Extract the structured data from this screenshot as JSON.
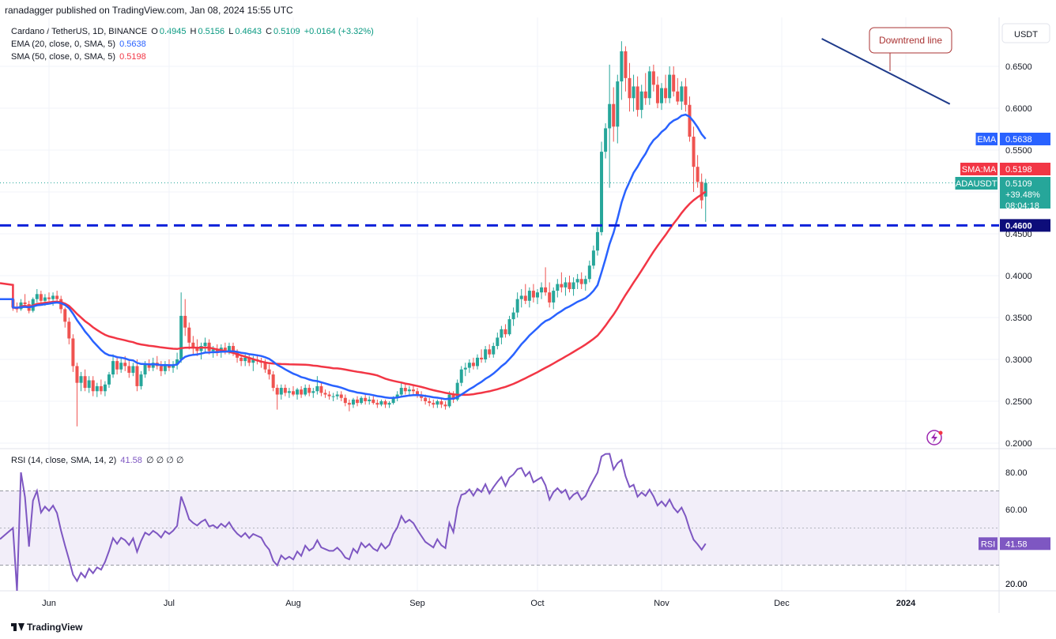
{
  "header": {
    "publisher": "ranadagger published on TradingView.com, Jan 08, 2024 15:55 UTC"
  },
  "legend": {
    "title": "Cardano / TetherUS, 1D, BINANCE",
    "o_label": "O",
    "o_value": "0.4945",
    "h_label": "H",
    "h_value": "0.5156",
    "l_label": "L",
    "l_value": "0.4643",
    "c_label": "C",
    "c_value": "0.5109",
    "change": "+0.0164 (+3.32%)",
    "ema_label": "EMA (20, close, 0, SMA, 5)",
    "ema_value": "0.5638",
    "sma_label": "SMA (50, close, 0, SMA, 5)",
    "sma_value": "0.5198",
    "rsi_label": "RSI (14, close, SMA, 14, 2)",
    "rsi_value": "41.58",
    "rsi_extra": "∅ ∅ ∅ ∅"
  },
  "colors": {
    "up": "#26a69a",
    "down": "#ef5350",
    "ema": "#2962ff",
    "sma": "#f23645",
    "rsi": "#7e57c2",
    "support": "#0d21d9",
    "trend": "#1e3a8a"
  },
  "currency_button": "USDT",
  "annotation": "Downtrend line",
  "price_tags": {
    "ema_label": "EMA",
    "ema_value": "0.5638",
    "sma_label": "SMA:MA",
    "sma_value": "0.5198",
    "pair_label": "ADAUSDT",
    "pair_value": "0.5109",
    "pair_change": "+39.48%",
    "pair_countdown": "08:04:18",
    "support_value": "0.4600",
    "rsi_label": "RSI",
    "rsi_value": "41.58"
  },
  "footer": {
    "brand": "TradingView"
  },
  "chart_data": {
    "type": "candlestick",
    "title": "Cardano / TetherUS, 1D, BINANCE",
    "price_axis": {
      "ticks": [
        "0.6500",
        "0.6000",
        "0.5500",
        "0.5000",
        "0.4500",
        "0.4000",
        "0.3500",
        "0.3000",
        "0.2500",
        "0.2000"
      ],
      "range": [
        0.2,
        0.68
      ]
    },
    "rsi_axis": {
      "ticks": [
        "80.00",
        "60.00",
        "20.00"
      ],
      "range": [
        16,
        90
      ],
      "bands": [
        30,
        70
      ]
    },
    "time_axis": [
      "Jun",
      "Jul",
      "Aug",
      "Sep",
      "Oct",
      "Nov",
      "Dec",
      "2024"
    ],
    "support_level": 0.46,
    "trendline": {
      "from": [
        "2023-12-11",
        0.683
      ],
      "to": [
        "2024-01-12",
        0.605
      ]
    },
    "dates_start": "2023-05-23",
    "candles": [
      [
        0.372,
        0.378,
        0.358,
        0.362
      ],
      [
        0.362,
        0.368,
        0.356,
        0.36
      ],
      [
        0.36,
        0.372,
        0.358,
        0.368
      ],
      [
        0.368,
        0.378,
        0.362,
        0.366
      ],
      [
        0.366,
        0.37,
        0.355,
        0.358
      ],
      [
        0.358,
        0.374,
        0.356,
        0.372
      ],
      [
        0.372,
        0.384,
        0.368,
        0.378
      ],
      [
        0.378,
        0.382,
        0.366,
        0.37
      ],
      [
        0.37,
        0.378,
        0.364,
        0.374
      ],
      [
        0.374,
        0.38,
        0.368,
        0.372
      ],
      [
        0.372,
        0.38,
        0.364,
        0.376
      ],
      [
        0.376,
        0.382,
        0.368,
        0.372
      ],
      [
        0.372,
        0.376,
        0.355,
        0.36
      ],
      [
        0.36,
        0.362,
        0.338,
        0.345
      ],
      [
        0.345,
        0.35,
        0.318,
        0.325
      ],
      [
        0.325,
        0.33,
        0.285,
        0.292
      ],
      [
        0.292,
        0.296,
        0.22,
        0.272
      ],
      [
        0.272,
        0.285,
        0.262,
        0.28
      ],
      [
        0.28,
        0.288,
        0.262,
        0.266
      ],
      [
        0.266,
        0.28,
        0.26,
        0.275
      ],
      [
        0.275,
        0.28,
        0.256,
        0.262
      ],
      [
        0.262,
        0.272,
        0.255,
        0.268
      ],
      [
        0.268,
        0.276,
        0.258,
        0.262
      ],
      [
        0.262,
        0.274,
        0.256,
        0.27
      ],
      [
        0.27,
        0.285,
        0.266,
        0.282
      ],
      [
        0.282,
        0.306,
        0.278,
        0.298
      ],
      [
        0.298,
        0.304,
        0.282,
        0.288
      ],
      [
        0.288,
        0.302,
        0.284,
        0.296
      ],
      [
        0.296,
        0.304,
        0.286,
        0.292
      ],
      [
        0.292,
        0.298,
        0.278,
        0.284
      ],
      [
        0.284,
        0.296,
        0.28,
        0.292
      ],
      [
        0.292,
        0.3,
        0.262,
        0.268
      ],
      [
        0.268,
        0.286,
        0.264,
        0.282
      ],
      [
        0.282,
        0.298,
        0.278,
        0.294
      ],
      [
        0.294,
        0.3,
        0.286,
        0.29
      ],
      [
        0.29,
        0.302,
        0.286,
        0.296
      ],
      [
        0.296,
        0.304,
        0.288,
        0.292
      ],
      [
        0.292,
        0.298,
        0.28,
        0.286
      ],
      [
        0.286,
        0.298,
        0.282,
        0.294
      ],
      [
        0.294,
        0.3,
        0.286,
        0.29
      ],
      [
        0.29,
        0.298,
        0.284,
        0.294
      ],
      [
        0.294,
        0.308,
        0.288,
        0.3
      ],
      [
        0.3,
        0.38,
        0.296,
        0.352
      ],
      [
        0.352,
        0.372,
        0.328,
        0.338
      ],
      [
        0.338,
        0.344,
        0.312,
        0.32
      ],
      [
        0.32,
        0.328,
        0.306,
        0.314
      ],
      [
        0.314,
        0.324,
        0.304,
        0.31
      ],
      [
        0.31,
        0.32,
        0.3,
        0.316
      ],
      [
        0.316,
        0.326,
        0.308,
        0.32
      ],
      [
        0.32,
        0.324,
        0.306,
        0.31
      ],
      [
        0.31,
        0.316,
        0.302,
        0.312
      ],
      [
        0.312,
        0.318,
        0.304,
        0.308
      ],
      [
        0.308,
        0.318,
        0.302,
        0.314
      ],
      [
        0.314,
        0.32,
        0.306,
        0.31
      ],
      [
        0.31,
        0.32,
        0.306,
        0.316
      ],
      [
        0.316,
        0.32,
        0.304,
        0.308
      ],
      [
        0.308,
        0.312,
        0.296,
        0.302
      ],
      [
        0.302,
        0.306,
        0.292,
        0.298
      ],
      [
        0.298,
        0.306,
        0.292,
        0.302
      ],
      [
        0.302,
        0.306,
        0.292,
        0.296
      ],
      [
        0.296,
        0.304,
        0.286,
        0.3
      ],
      [
        0.3,
        0.306,
        0.294,
        0.298
      ],
      [
        0.298,
        0.302,
        0.29,
        0.296
      ],
      [
        0.296,
        0.3,
        0.284,
        0.288
      ],
      [
        0.288,
        0.294,
        0.276,
        0.282
      ],
      [
        0.282,
        0.286,
        0.262,
        0.266
      ],
      [
        0.266,
        0.27,
        0.24,
        0.258
      ],
      [
        0.258,
        0.27,
        0.252,
        0.266
      ],
      [
        0.266,
        0.27,
        0.256,
        0.26
      ],
      [
        0.26,
        0.266,
        0.254,
        0.262
      ],
      [
        0.262,
        0.268,
        0.256,
        0.258
      ],
      [
        0.258,
        0.266,
        0.252,
        0.264
      ],
      [
        0.264,
        0.268,
        0.254,
        0.258
      ],
      [
        0.258,
        0.27,
        0.256,
        0.266
      ],
      [
        0.266,
        0.27,
        0.256,
        0.26
      ],
      [
        0.26,
        0.266,
        0.254,
        0.262
      ],
      [
        0.262,
        0.28,
        0.258,
        0.268
      ],
      [
        0.268,
        0.272,
        0.256,
        0.26
      ],
      [
        0.26,
        0.264,
        0.254,
        0.258
      ],
      [
        0.258,
        0.262,
        0.252,
        0.256
      ],
      [
        0.256,
        0.26,
        0.25,
        0.256
      ],
      [
        0.256,
        0.262,
        0.252,
        0.258
      ],
      [
        0.258,
        0.262,
        0.25,
        0.254
      ],
      [
        0.254,
        0.258,
        0.244,
        0.248
      ],
      [
        0.248,
        0.252,
        0.238,
        0.246
      ],
      [
        0.246,
        0.254,
        0.242,
        0.252
      ],
      [
        0.252,
        0.256,
        0.244,
        0.248
      ],
      [
        0.248,
        0.256,
        0.246,
        0.254
      ],
      [
        0.254,
        0.258,
        0.246,
        0.25
      ],
      [
        0.25,
        0.256,
        0.246,
        0.252
      ],
      [
        0.252,
        0.256,
        0.246,
        0.248
      ],
      [
        0.248,
        0.252,
        0.242,
        0.246
      ],
      [
        0.246,
        0.252,
        0.244,
        0.25
      ],
      [
        0.25,
        0.252,
        0.242,
        0.246
      ],
      [
        0.246,
        0.25,
        0.242,
        0.248
      ],
      [
        0.248,
        0.256,
        0.246,
        0.254
      ],
      [
        0.254,
        0.262,
        0.25,
        0.258
      ],
      [
        0.258,
        0.272,
        0.256,
        0.266
      ],
      [
        0.266,
        0.27,
        0.258,
        0.262
      ],
      [
        0.262,
        0.268,
        0.256,
        0.264
      ],
      [
        0.264,
        0.27,
        0.258,
        0.262
      ],
      [
        0.262,
        0.266,
        0.254,
        0.258
      ],
      [
        0.258,
        0.262,
        0.25,
        0.254
      ],
      [
        0.254,
        0.258,
        0.246,
        0.25
      ],
      [
        0.25,
        0.254,
        0.244,
        0.248
      ],
      [
        0.248,
        0.252,
        0.242,
        0.246
      ],
      [
        0.246,
        0.252,
        0.242,
        0.25
      ],
      [
        0.25,
        0.254,
        0.242,
        0.246
      ],
      [
        0.246,
        0.25,
        0.24,
        0.244
      ],
      [
        0.244,
        0.262,
        0.242,
        0.258
      ],
      [
        0.258,
        0.262,
        0.248,
        0.252
      ],
      [
        0.252,
        0.276,
        0.25,
        0.272
      ],
      [
        0.272,
        0.292,
        0.268,
        0.288
      ],
      [
        0.288,
        0.296,
        0.28,
        0.29
      ],
      [
        0.29,
        0.3,
        0.284,
        0.296
      ],
      [
        0.296,
        0.302,
        0.288,
        0.292
      ],
      [
        0.292,
        0.306,
        0.288,
        0.302
      ],
      [
        0.302,
        0.312,
        0.296,
        0.3
      ],
      [
        0.3,
        0.316,
        0.296,
        0.312
      ],
      [
        0.312,
        0.318,
        0.302,
        0.306
      ],
      [
        0.306,
        0.32,
        0.302,
        0.316
      ],
      [
        0.316,
        0.332,
        0.312,
        0.326
      ],
      [
        0.326,
        0.34,
        0.318,
        0.336
      ],
      [
        0.336,
        0.342,
        0.326,
        0.33
      ],
      [
        0.33,
        0.352,
        0.328,
        0.348
      ],
      [
        0.348,
        0.362,
        0.34,
        0.356
      ],
      [
        0.356,
        0.38,
        0.35,
        0.372
      ],
      [
        0.372,
        0.384,
        0.362,
        0.376
      ],
      [
        0.376,
        0.39,
        0.366,
        0.37
      ],
      [
        0.37,
        0.386,
        0.362,
        0.382
      ],
      [
        0.382,
        0.39,
        0.368,
        0.374
      ],
      [
        0.374,
        0.384,
        0.366,
        0.38
      ],
      [
        0.38,
        0.392,
        0.372,
        0.386
      ],
      [
        0.386,
        0.41,
        0.376,
        0.38
      ],
      [
        0.38,
        0.392,
        0.362,
        0.368
      ],
      [
        0.368,
        0.386,
        0.36,
        0.382
      ],
      [
        0.382,
        0.396,
        0.374,
        0.39
      ],
      [
        0.39,
        0.404,
        0.38,
        0.386
      ],
      [
        0.386,
        0.398,
        0.376,
        0.392
      ],
      [
        0.392,
        0.4,
        0.38,
        0.384
      ],
      [
        0.384,
        0.398,
        0.376,
        0.392
      ],
      [
        0.392,
        0.402,
        0.384,
        0.396
      ],
      [
        0.396,
        0.404,
        0.384,
        0.39
      ],
      [
        0.39,
        0.4,
        0.382,
        0.396
      ],
      [
        0.396,
        0.418,
        0.392,
        0.412
      ],
      [
        0.412,
        0.436,
        0.408,
        0.43
      ],
      [
        0.43,
        0.458,
        0.424,
        0.452
      ],
      [
        0.452,
        0.56,
        0.448,
        0.548
      ],
      [
        0.548,
        0.582,
        0.54,
        0.576
      ],
      [
        0.576,
        0.652,
        0.505,
        0.605
      ],
      [
        0.605,
        0.625,
        0.56,
        0.578
      ],
      [
        0.578,
        0.64,
        0.558,
        0.632
      ],
      [
        0.632,
        0.68,
        0.61,
        0.668
      ],
      [
        0.668,
        0.674,
        0.62,
        0.636
      ],
      [
        0.636,
        0.654,
        0.596,
        0.612
      ],
      [
        0.612,
        0.64,
        0.596,
        0.626
      ],
      [
        0.626,
        0.638,
        0.59,
        0.598
      ],
      [
        0.598,
        0.628,
        0.588,
        0.62
      ],
      [
        0.62,
        0.642,
        0.604,
        0.612
      ],
      [
        0.612,
        0.65,
        0.604,
        0.644
      ],
      [
        0.644,
        0.652,
        0.62,
        0.628
      ],
      [
        0.628,
        0.638,
        0.6,
        0.606
      ],
      [
        0.606,
        0.63,
        0.598,
        0.624
      ],
      [
        0.624,
        0.64,
        0.606,
        0.612
      ],
      [
        0.612,
        0.65,
        0.606,
        0.64
      ],
      [
        0.64,
        0.65,
        0.614,
        0.62
      ],
      [
        0.62,
        0.636,
        0.604,
        0.608
      ],
      [
        0.608,
        0.632,
        0.598,
        0.626
      ],
      [
        0.626,
        0.636,
        0.596,
        0.604
      ],
      [
        0.604,
        0.614,
        0.56,
        0.566
      ],
      [
        0.566,
        0.578,
        0.5,
        0.53
      ],
      [
        0.53,
        0.544,
        0.505,
        0.512
      ],
      [
        0.512,
        0.522,
        0.48,
        0.49
      ],
      [
        0.4945,
        0.5156,
        0.4643,
        0.5109
      ]
    ]
  }
}
